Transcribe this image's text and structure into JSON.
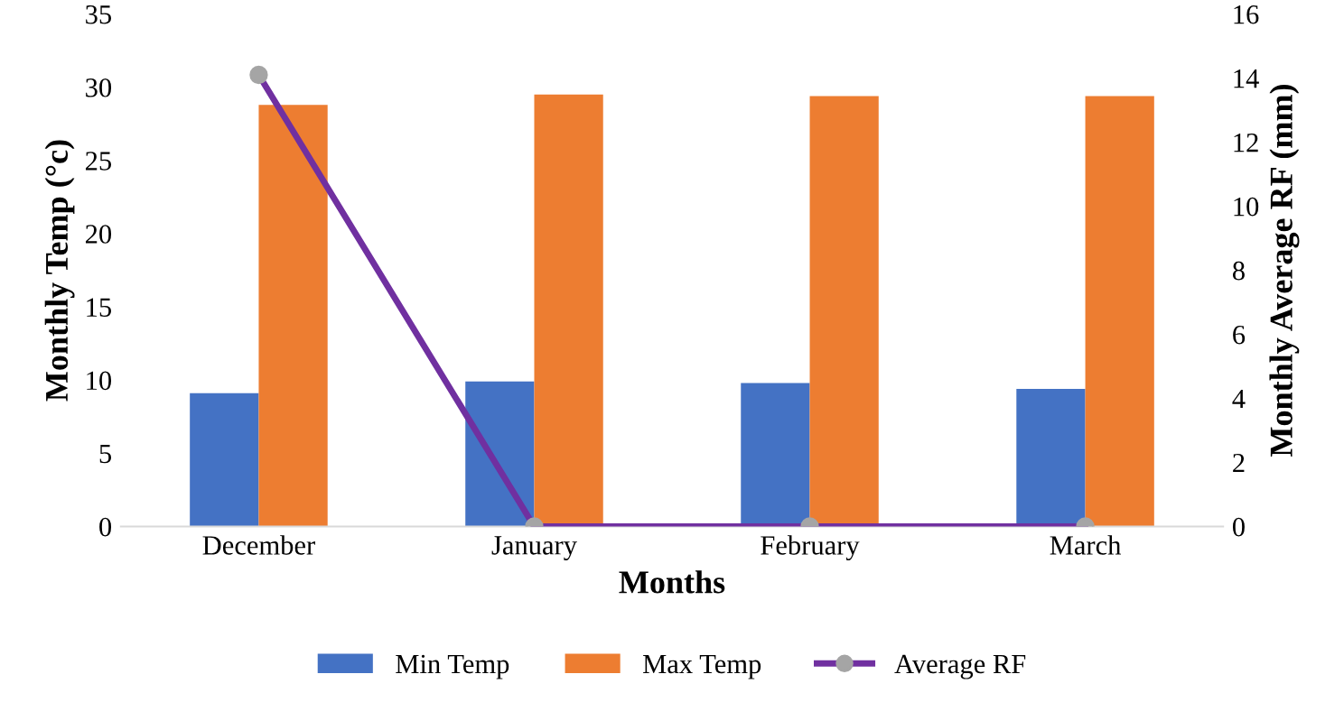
{
  "chart_data": {
    "type": "bar",
    "categories": [
      "December",
      "January",
      "February",
      "March"
    ],
    "xlabel": "Months",
    "ylabel": "Monthly Temp (°c)",
    "y2label": "Monthly Average RF (mm)",
    "series": [
      {
        "name": "Min Temp",
        "color": "#4472c4",
        "values": [
          9.1,
          9.9,
          9.8,
          9.4
        ]
      },
      {
        "name": "Max Temp",
        "color": "#ed7d31",
        "values": [
          28.8,
          29.5,
          29.4,
          29.4
        ]
      },
      {
        "name": "Average RF",
        "type": "line",
        "axis": "y2",
        "color": "#7030a0",
        "colors": [
          "#a5a5a5",
          "#a5a5a5",
          "#a5a5a5",
          "#a5a5a5"
        ],
        "marker": "circle",
        "values": [
          14.1,
          0,
          0,
          0
        ]
      }
    ],
    "ylim": [
      0,
      35
    ],
    "yticks": [
      0,
      5,
      10,
      15,
      20,
      25,
      30,
      35
    ],
    "y2lim": [
      0,
      16
    ],
    "y2ticks": [
      0,
      2,
      4,
      6,
      8,
      10,
      12,
      14,
      16
    ],
    "grid": false,
    "legend": "bottom"
  }
}
